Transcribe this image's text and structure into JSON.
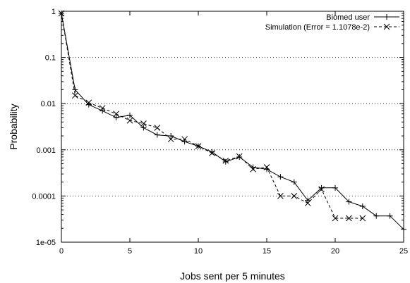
{
  "chart_data": {
    "type": "line",
    "xlabel": "Jobs sent per 5 minutes",
    "ylabel": "Probability",
    "x_scale": "linear",
    "y_scale": "log",
    "xlim": [
      0,
      25
    ],
    "ylim": [
      1e-05,
      1
    ],
    "x_ticks": [
      0,
      5,
      10,
      15,
      20,
      25
    ],
    "y_ticks": [
      {
        "value": 1,
        "label": "1"
      },
      {
        "value": 0.1,
        "label": "0.1"
      },
      {
        "value": 0.01,
        "label": "0.01"
      },
      {
        "value": 0.001,
        "label": "0.001"
      },
      {
        "value": 0.0001,
        "label": "0.0001"
      },
      {
        "value": 1e-05,
        "label": "1e-05"
      }
    ],
    "grid": "horizontal dotted",
    "legend_position": "top-right",
    "series": [
      {
        "name": "Biomed user",
        "line_style": "solid",
        "marker": "plus",
        "color": "#000000",
        "x": [
          0,
          1,
          2,
          3,
          4,
          5,
          6,
          7,
          8,
          9,
          10,
          11,
          12,
          13,
          14,
          15,
          16,
          17,
          18,
          19,
          20,
          21,
          22,
          23,
          24,
          25
        ],
        "y": [
          0.9,
          0.02,
          0.0095,
          0.007,
          0.005,
          0.0056,
          0.003,
          0.0021,
          0.002,
          0.0015,
          0.0012,
          0.0009,
          0.00055,
          0.0007,
          0.00042,
          0.00038,
          0.00026,
          0.0002,
          8e-05,
          0.00015,
          0.00015,
          7.5e-05,
          6e-05,
          3.7e-05,
          3.7e-05,
          1.9e-05
        ]
      },
      {
        "name": "Simulation (Error = 1.1078e-2)",
        "line_style": "dashed",
        "marker": "x",
        "color": "#000000",
        "x": [
          0,
          1,
          2,
          3,
          4,
          5,
          6,
          7,
          8,
          9,
          10,
          11,
          12,
          13,
          14,
          15,
          16,
          17,
          18,
          19,
          20,
          21,
          22
        ],
        "y": [
          0.9,
          0.015,
          0.0105,
          0.008,
          0.006,
          0.0043,
          0.0037,
          0.003,
          0.0017,
          0.0017,
          0.0012,
          0.00085,
          0.00058,
          0.00072,
          0.00038,
          0.00042,
          0.0001,
          0.0001,
          7e-05,
          0.00014,
          3.3e-05,
          3.3e-05,
          3.3e-05
        ]
      }
    ]
  }
}
